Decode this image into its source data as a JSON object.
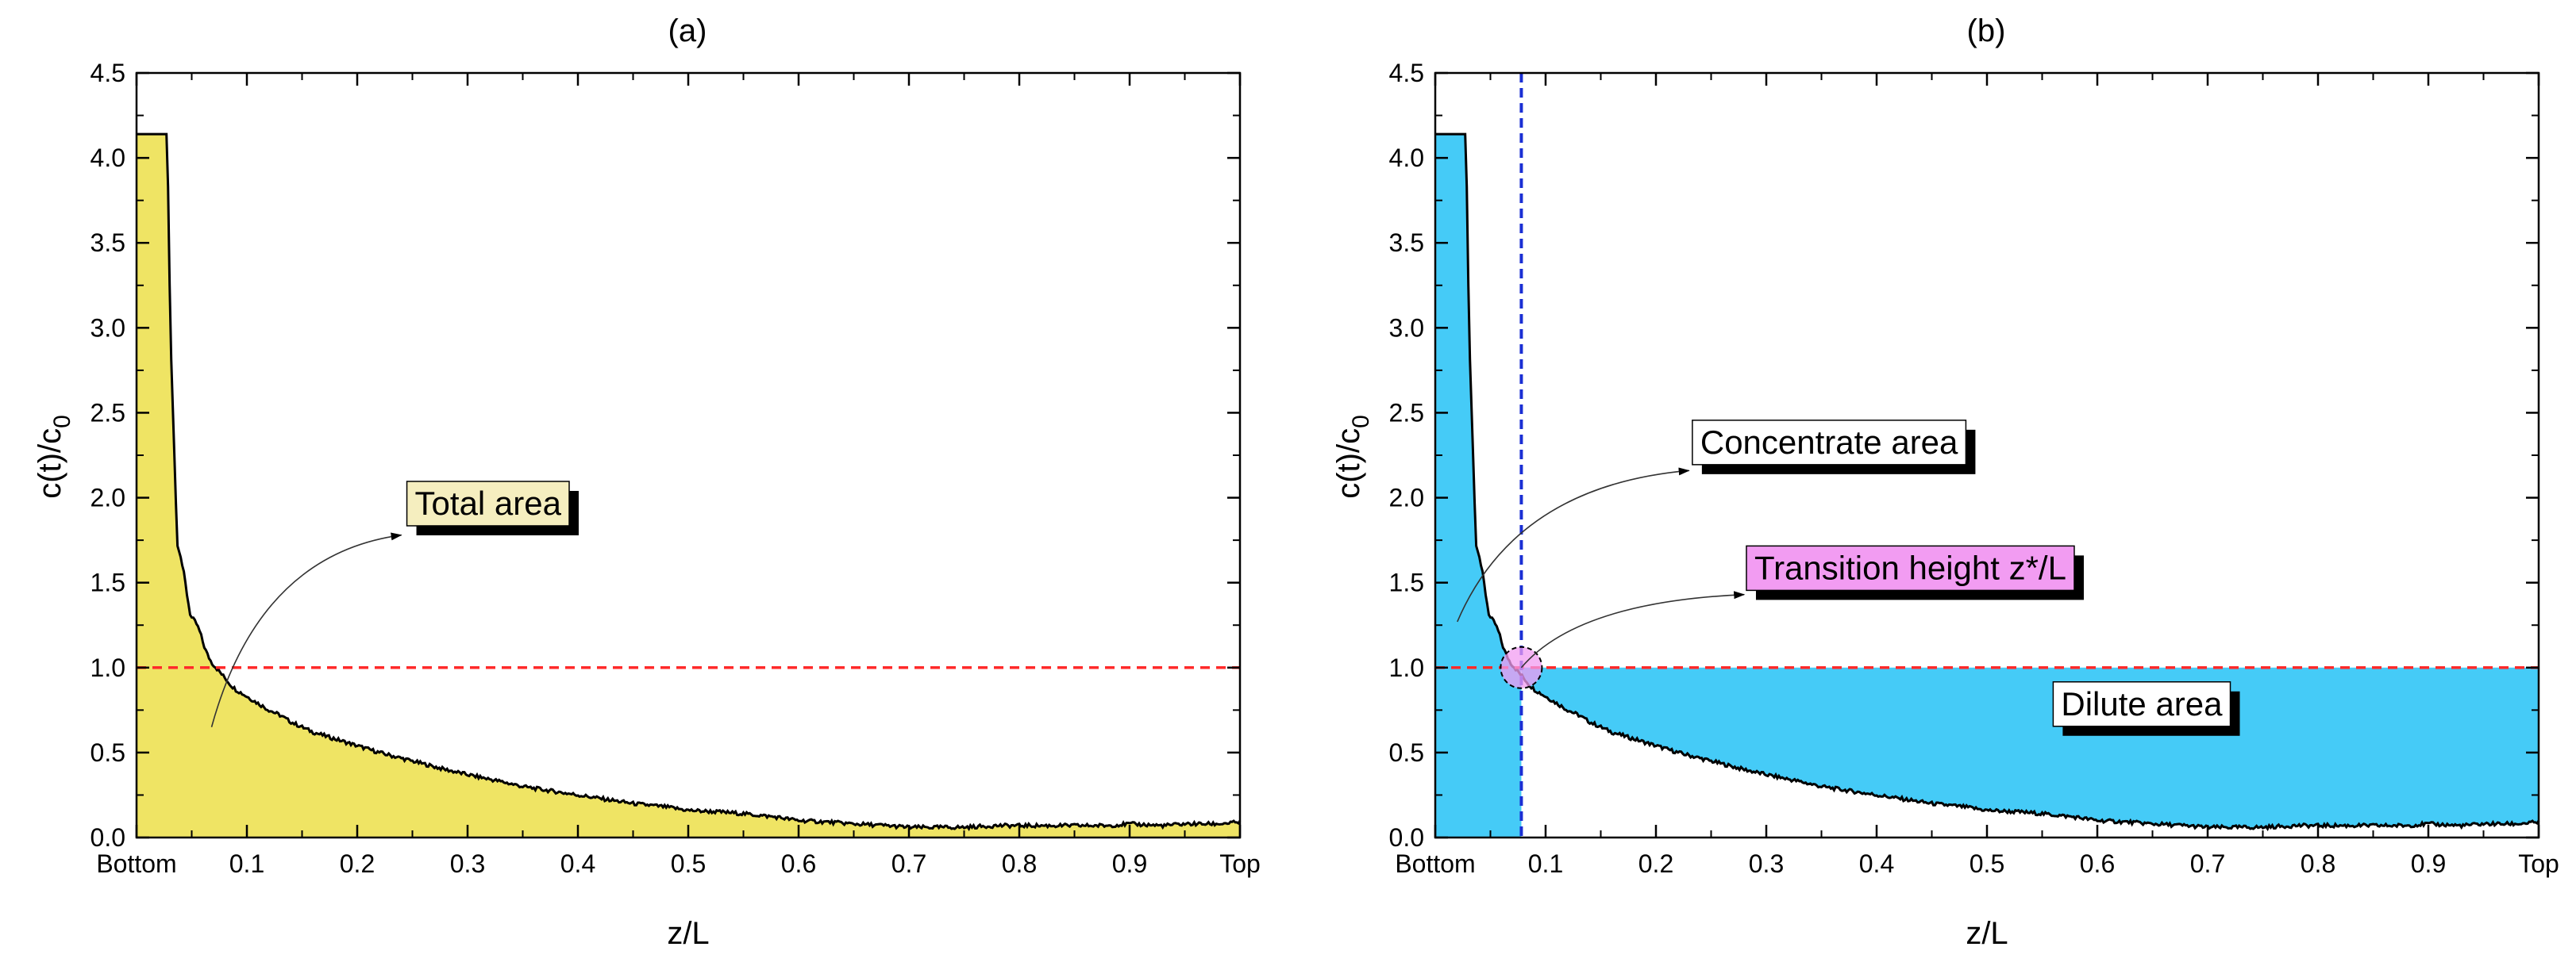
{
  "chart_data": [
    {
      "type": "area",
      "title": "(a)",
      "xlabel": "z/L",
      "ylabel": "c(t)/c",
      "ylabel_sub": "0",
      "xlim": [
        0.0,
        1.0
      ],
      "ylim": [
        0.0,
        4.5
      ],
      "xticks": [
        {
          "v": 0.0,
          "label": "Bottom"
        },
        {
          "v": 0.1,
          "label": "0.1"
        },
        {
          "v": 0.2,
          "label": "0.2"
        },
        {
          "v": 0.3,
          "label": "0.3"
        },
        {
          "v": 0.4,
          "label": "0.4"
        },
        {
          "v": 0.5,
          "label": "0.5"
        },
        {
          "v": 0.6,
          "label": "0.6"
        },
        {
          "v": 0.7,
          "label": "0.7"
        },
        {
          "v": 0.8,
          "label": "0.8"
        },
        {
          "v": 0.9,
          "label": "0.9"
        },
        {
          "v": 1.0,
          "label": "Top"
        }
      ],
      "yticks": [
        {
          "v": 0.0,
          "label": "0.0"
        },
        {
          "v": 0.5,
          "label": "0.5"
        },
        {
          "v": 1.0,
          "label": "1.0"
        },
        {
          "v": 1.5,
          "label": "1.5"
        },
        {
          "v": 2.0,
          "label": "2.0"
        },
        {
          "v": 2.5,
          "label": "2.5"
        },
        {
          "v": 3.0,
          "label": "3.0"
        },
        {
          "v": 3.5,
          "label": "3.5"
        },
        {
          "v": 4.0,
          "label": "4.0"
        },
        {
          "v": 4.5,
          "label": "4.5"
        }
      ],
      "reference_line": {
        "y": 1.0,
        "color": "#ff2a2a"
      },
      "fill_color": "#efe464",
      "fill_mode": "total",
      "annotations": [
        {
          "text": "Total area",
          "box_color": "#f5eebf",
          "tail": [
            0.068,
            0.65
          ],
          "head": [
            0.24,
            1.78
          ],
          "box_x": 0.245,
          "box_y": 1.9
        }
      ],
      "series": [
        {
          "name": "c(t)/c0",
          "x": [
            0.0,
            0.007,
            0.014,
            0.021,
            0.028,
            0.029,
            0.031,
            0.034,
            0.037,
            0.04,
            0.043,
            0.046,
            0.049,
            0.052,
            0.055,
            0.058,
            0.061,
            0.064,
            0.068,
            0.072,
            0.076,
            0.08,
            0.085,
            0.09,
            0.095,
            0.1,
            0.11,
            0.12,
            0.13,
            0.14,
            0.15,
            0.16,
            0.18,
            0.2,
            0.22,
            0.25,
            0.28,
            0.3,
            0.33,
            0.35,
            0.38,
            0.4,
            0.43,
            0.45,
            0.48,
            0.5,
            0.53,
            0.55,
            0.58,
            0.6,
            0.63,
            0.65,
            0.68,
            0.7,
            0.73,
            0.75,
            0.78,
            0.8,
            0.83,
            0.85,
            0.88,
            0.9,
            0.93,
            0.95,
            0.98,
            1.0
          ],
          "values": [
            4.14,
            4.14,
            4.14,
            4.14,
            4.14,
            3.6,
            2.9,
            2.3,
            1.72,
            1.65,
            1.55,
            1.42,
            1.3,
            1.28,
            1.25,
            1.2,
            1.13,
            1.08,
            1.03,
            1.0,
            0.97,
            0.94,
            0.9,
            0.87,
            0.85,
            0.83,
            0.79,
            0.75,
            0.72,
            0.68,
            0.65,
            0.62,
            0.58,
            0.54,
            0.5,
            0.45,
            0.4,
            0.37,
            0.33,
            0.3,
            0.27,
            0.25,
            0.22,
            0.2,
            0.18,
            0.16,
            0.15,
            0.14,
            0.12,
            0.1,
            0.09,
            0.08,
            0.07,
            0.06,
            0.06,
            0.06,
            0.07,
            0.07,
            0.07,
            0.07,
            0.07,
            0.08,
            0.07,
            0.08,
            0.08,
            0.09
          ]
        }
      ]
    },
    {
      "type": "area",
      "title": "(b)",
      "xlabel": "z/L",
      "ylabel": "c(t)/c",
      "ylabel_sub": "0",
      "xlim": [
        0.0,
        1.0
      ],
      "ylim": [
        0.0,
        4.5
      ],
      "xticks": [
        {
          "v": 0.0,
          "label": "Bottom"
        },
        {
          "v": 0.1,
          "label": "0.1"
        },
        {
          "v": 0.2,
          "label": "0.2"
        },
        {
          "v": 0.3,
          "label": "0.3"
        },
        {
          "v": 0.4,
          "label": "0.4"
        },
        {
          "v": 0.5,
          "label": "0.5"
        },
        {
          "v": 0.6,
          "label": "0.6"
        },
        {
          "v": 0.7,
          "label": "0.7"
        },
        {
          "v": 0.8,
          "label": "0.8"
        },
        {
          "v": 0.9,
          "label": "0.9"
        },
        {
          "v": 1.0,
          "label": "Top"
        }
      ],
      "yticks": [
        {
          "v": 0.0,
          "label": "0.0"
        },
        {
          "v": 0.5,
          "label": "0.5"
        },
        {
          "v": 1.0,
          "label": "1.0"
        },
        {
          "v": 1.5,
          "label": "1.5"
        },
        {
          "v": 2.0,
          "label": "2.0"
        },
        {
          "v": 2.5,
          "label": "2.5"
        },
        {
          "v": 3.0,
          "label": "3.0"
        },
        {
          "v": 3.5,
          "label": "3.5"
        },
        {
          "v": 4.0,
          "label": "4.0"
        },
        {
          "v": 4.5,
          "label": "4.5"
        }
      ],
      "reference_line": {
        "y": 1.0,
        "color": "#ff2a2a"
      },
      "transition_x": 0.078,
      "vertical_line_color": "#1a2fd4",
      "fill_color": "#45cbf7",
      "fill_mode": "split",
      "annotations": [
        {
          "text": "Concentrate area",
          "box_color": "#ffffff",
          "tail": [
            0.02,
            1.27
          ],
          "head": [
            0.23,
            2.16
          ],
          "box_x": 0.233,
          "box_y": 2.26
        },
        {
          "text": "Transition height z*/L",
          "box_color": "#f29cf2",
          "tail": [
            0.078,
            1.0
          ],
          "head": [
            0.28,
            1.43
          ],
          "box_x": 0.282,
          "box_y": 1.52
        },
        {
          "text": "Dilute area",
          "box_color": "#ffffff",
          "tail": null,
          "head": null,
          "box_x": 0.56,
          "box_y": 0.72
        }
      ],
      "series": [
        {
          "name": "c(t)/c0",
          "x": [
            0.0,
            0.007,
            0.014,
            0.021,
            0.028,
            0.029,
            0.031,
            0.034,
            0.037,
            0.04,
            0.043,
            0.046,
            0.049,
            0.052,
            0.055,
            0.058,
            0.061,
            0.064,
            0.068,
            0.072,
            0.076,
            0.08,
            0.085,
            0.09,
            0.095,
            0.1,
            0.11,
            0.12,
            0.13,
            0.14,
            0.15,
            0.16,
            0.18,
            0.2,
            0.22,
            0.25,
            0.28,
            0.3,
            0.33,
            0.35,
            0.38,
            0.4,
            0.43,
            0.45,
            0.48,
            0.5,
            0.53,
            0.55,
            0.58,
            0.6,
            0.63,
            0.65,
            0.68,
            0.7,
            0.73,
            0.75,
            0.78,
            0.8,
            0.83,
            0.85,
            0.88,
            0.9,
            0.93,
            0.95,
            0.98,
            1.0
          ],
          "values": [
            4.14,
            4.14,
            4.14,
            4.14,
            4.14,
            3.6,
            2.9,
            2.3,
            1.72,
            1.65,
            1.55,
            1.42,
            1.3,
            1.28,
            1.25,
            1.2,
            1.13,
            1.08,
            1.03,
            1.0,
            0.97,
            0.94,
            0.9,
            0.87,
            0.85,
            0.83,
            0.79,
            0.75,
            0.72,
            0.68,
            0.65,
            0.62,
            0.58,
            0.54,
            0.5,
            0.45,
            0.4,
            0.37,
            0.33,
            0.3,
            0.27,
            0.25,
            0.22,
            0.2,
            0.18,
            0.16,
            0.15,
            0.14,
            0.12,
            0.1,
            0.09,
            0.08,
            0.07,
            0.06,
            0.06,
            0.06,
            0.07,
            0.07,
            0.07,
            0.07,
            0.07,
            0.08,
            0.07,
            0.08,
            0.08,
            0.09
          ]
        }
      ]
    }
  ]
}
